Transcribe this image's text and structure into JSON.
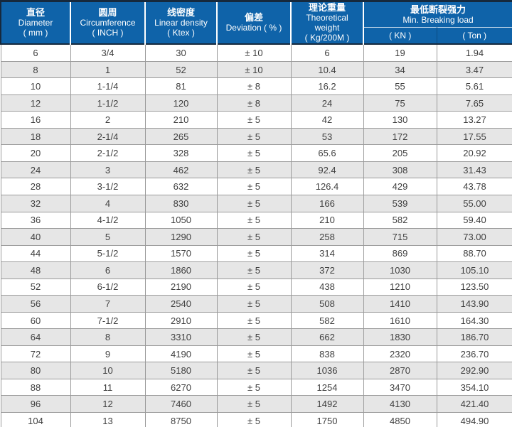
{
  "colors": {
    "header_bg": "#0f63a9",
    "header_text": "#ffffff",
    "header_outline": "#16293d",
    "header_divider": "#ffffff",
    "subheader_divider_h": "#c6d9ea",
    "subheader_divider_v": "#0a4c82",
    "row_bg": "#ffffff",
    "row_alt_bg": "#e6e6e6",
    "grid_line": "#9b9b9b",
    "table_outer": "#8a8a8a",
    "text": "#3f3f3f"
  },
  "table": {
    "columns": [
      {
        "zh": "直径",
        "en": "Diameter",
        "unit": "( mm )"
      },
      {
        "zh": "圆周",
        "en": "Circumference",
        "unit": "( INCH )"
      },
      {
        "zh": "线密度",
        "en": "Linear density",
        "unit": "( Ktex )"
      },
      {
        "zh": "偏差",
        "en": "Deviation ( % )",
        "unit": ""
      },
      {
        "zh": "理论重量",
        "en": "Theoretical weight",
        "unit": "( Kg/200M )"
      },
      {
        "zh": "最低断裂强力",
        "en": "Min. Breaking load",
        "sub": [
          "( KN )",
          "( Ton )"
        ]
      }
    ],
    "rows": [
      [
        "6",
        "3/4",
        "30",
        "± 10",
        "6",
        "19",
        "1.94"
      ],
      [
        "8",
        "1",
        "52",
        "± 10",
        "10.4",
        "34",
        "3.47"
      ],
      [
        "10",
        "1-1/4",
        "81",
        "± 8",
        "16.2",
        "55",
        "5.61"
      ],
      [
        "12",
        "1-1/2",
        "120",
        "± 8",
        "24",
        "75",
        "7.65"
      ],
      [
        "16",
        "2",
        "210",
        "± 5",
        "42",
        "130",
        "13.27"
      ],
      [
        "18",
        "2-1/4",
        "265",
        "± 5",
        "53",
        "172",
        "17.55"
      ],
      [
        "20",
        "2-1/2",
        "328",
        "± 5",
        "65.6",
        "205",
        "20.92"
      ],
      [
        "24",
        "3",
        "462",
        "± 5",
        "92.4",
        "308",
        "31.43"
      ],
      [
        "28",
        "3-1/2",
        "632",
        "± 5",
        "126.4",
        "429",
        "43.78"
      ],
      [
        "32",
        "4",
        "830",
        "± 5",
        "166",
        "539",
        "55.00"
      ],
      [
        "36",
        "4-1/2",
        "1050",
        "± 5",
        "210",
        "582",
        "59.40"
      ],
      [
        "40",
        "5",
        "1290",
        "± 5",
        "258",
        "715",
        "73.00"
      ],
      [
        "44",
        "5-1/2",
        "1570",
        "± 5",
        "314",
        "869",
        "88.70"
      ],
      [
        "48",
        "6",
        "1860",
        "± 5",
        "372",
        "1030",
        "105.10"
      ],
      [
        "52",
        "6-1/2",
        "2190",
        "± 5",
        "438",
        "1210",
        "123.50"
      ],
      [
        "56",
        "7",
        "2540",
        "± 5",
        "508",
        "1410",
        "143.90"
      ],
      [
        "60",
        "7-1/2",
        "2910",
        "± 5",
        "582",
        "1610",
        "164.30"
      ],
      [
        "64",
        "8",
        "3310",
        "± 5",
        "662",
        "1830",
        "186.70"
      ],
      [
        "72",
        "9",
        "4190",
        "± 5",
        "838",
        "2320",
        "236.70"
      ],
      [
        "80",
        "10",
        "5180",
        "± 5",
        "1036",
        "2870",
        "292.90"
      ],
      [
        "88",
        "11",
        "6270",
        "± 5",
        "1254",
        "3470",
        "354.10"
      ],
      [
        "96",
        "12",
        "7460",
        "± 5",
        "1492",
        "4130",
        "421.40"
      ],
      [
        "104",
        "13",
        "8750",
        "± 5",
        "1750",
        "4850",
        "494.90"
      ]
    ]
  }
}
